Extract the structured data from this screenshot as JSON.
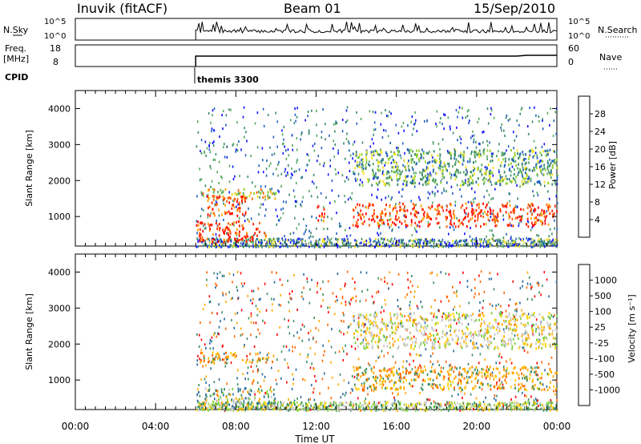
{
  "header": {
    "station": "Inuvik (fitACF)",
    "beam": "Beam 01",
    "date": "15/Sep/2010"
  },
  "status_panels": {
    "nsky": {
      "label": "N.Sky",
      "ticks": [
        "10^5",
        "10^0"
      ],
      "right_label": "N.Search",
      "right_ticks": [
        "10^5",
        "10^0"
      ]
    },
    "freq": {
      "label_line1": "Freq.",
      "label_line2": "[MHz]",
      "ticks": [
        "18",
        "8"
      ],
      "right_label": "Nave",
      "right_ticks": [
        "60",
        "0"
      ]
    },
    "cpid": {
      "label": "CPID",
      "program": "themis 3300"
    }
  },
  "colors": {
    "power": [
      "#1010ff",
      "#1f5fbf",
      "#3a8a6a",
      "#55a860",
      "#8fd12c",
      "#f0e020",
      "#ffa000",
      "#ff6000",
      "#ff2000",
      "#ff0000"
    ],
    "velocity": [
      "#ff0000",
      "#ff6600",
      "#ffaa00",
      "#ffd000",
      "#c8c8c8",
      "#c8c8c8",
      "#80d040",
      "#3c9060",
      "#2a6aa0",
      "#1c3ad0"
    ]
  },
  "chart_data": [
    {
      "type": "heatmap",
      "panel": "power",
      "ylabel": "Slant Range [km]",
      "ylim": [
        180,
        4500
      ],
      "xlim": [
        0,
        24
      ],
      "yticks": [
        "1000",
        "2000",
        "3000",
        "4000"
      ],
      "colorbar_label": "Power [dB]",
      "colorbar_ticks": [
        "4",
        "8",
        "12",
        "16",
        "20",
        "24",
        "28"
      ],
      "regions": [
        {
          "t": [
            6.0,
            9.5
          ],
          "r": [
            300,
            900
          ],
          "level": "high"
        },
        {
          "t": [
            6.2,
            10.0
          ],
          "r": [
            1500,
            1800
          ],
          "level": "mid"
        },
        {
          "t": [
            6.5,
            8.5
          ],
          "r": [
            1050,
            1600
          ],
          "level": "high"
        },
        {
          "t": [
            12.0,
            12.4
          ],
          "r": [
            900,
            1400
          ],
          "level": "high"
        },
        {
          "t": [
            13.8,
            24.0
          ],
          "r": [
            750,
            1400
          ],
          "level": "high"
        },
        {
          "t": [
            13.8,
            24.0
          ],
          "r": [
            1900,
            2900
          ],
          "level": "low"
        }
      ]
    },
    {
      "type": "heatmap",
      "panel": "velocity",
      "ylabel": "Slant Range [km]",
      "ylim": [
        180,
        4500
      ],
      "xlim": [
        0,
        24
      ],
      "yticks": [
        "1000",
        "2000",
        "3000",
        "4000"
      ],
      "colorbar_label": "Velocity [m s⁻¹]",
      "colorbar_ticks": [
        "-1000",
        "-500",
        "-100",
        "-25",
        "25",
        "100",
        "500",
        "1000"
      ],
      "xlabel": "Time UT",
      "xticks": [
        "00:00",
        "04:00",
        "08:00",
        "12:00",
        "16:00",
        "20:00",
        "00:00"
      ],
      "regions": [
        {
          "t": [
            6.0,
            10.0
          ],
          "r": [
            200,
            800
          ],
          "level": "green"
        },
        {
          "t": [
            6.2,
            10.0
          ],
          "r": [
            1500,
            1800
          ],
          "level": "orange"
        },
        {
          "t": [
            13.8,
            24.0
          ],
          "r": [
            750,
            1400
          ],
          "level": "orange"
        },
        {
          "t": [
            13.8,
            24.0
          ],
          "r": [
            1900,
            2900
          ],
          "level": "gray"
        }
      ]
    }
  ]
}
